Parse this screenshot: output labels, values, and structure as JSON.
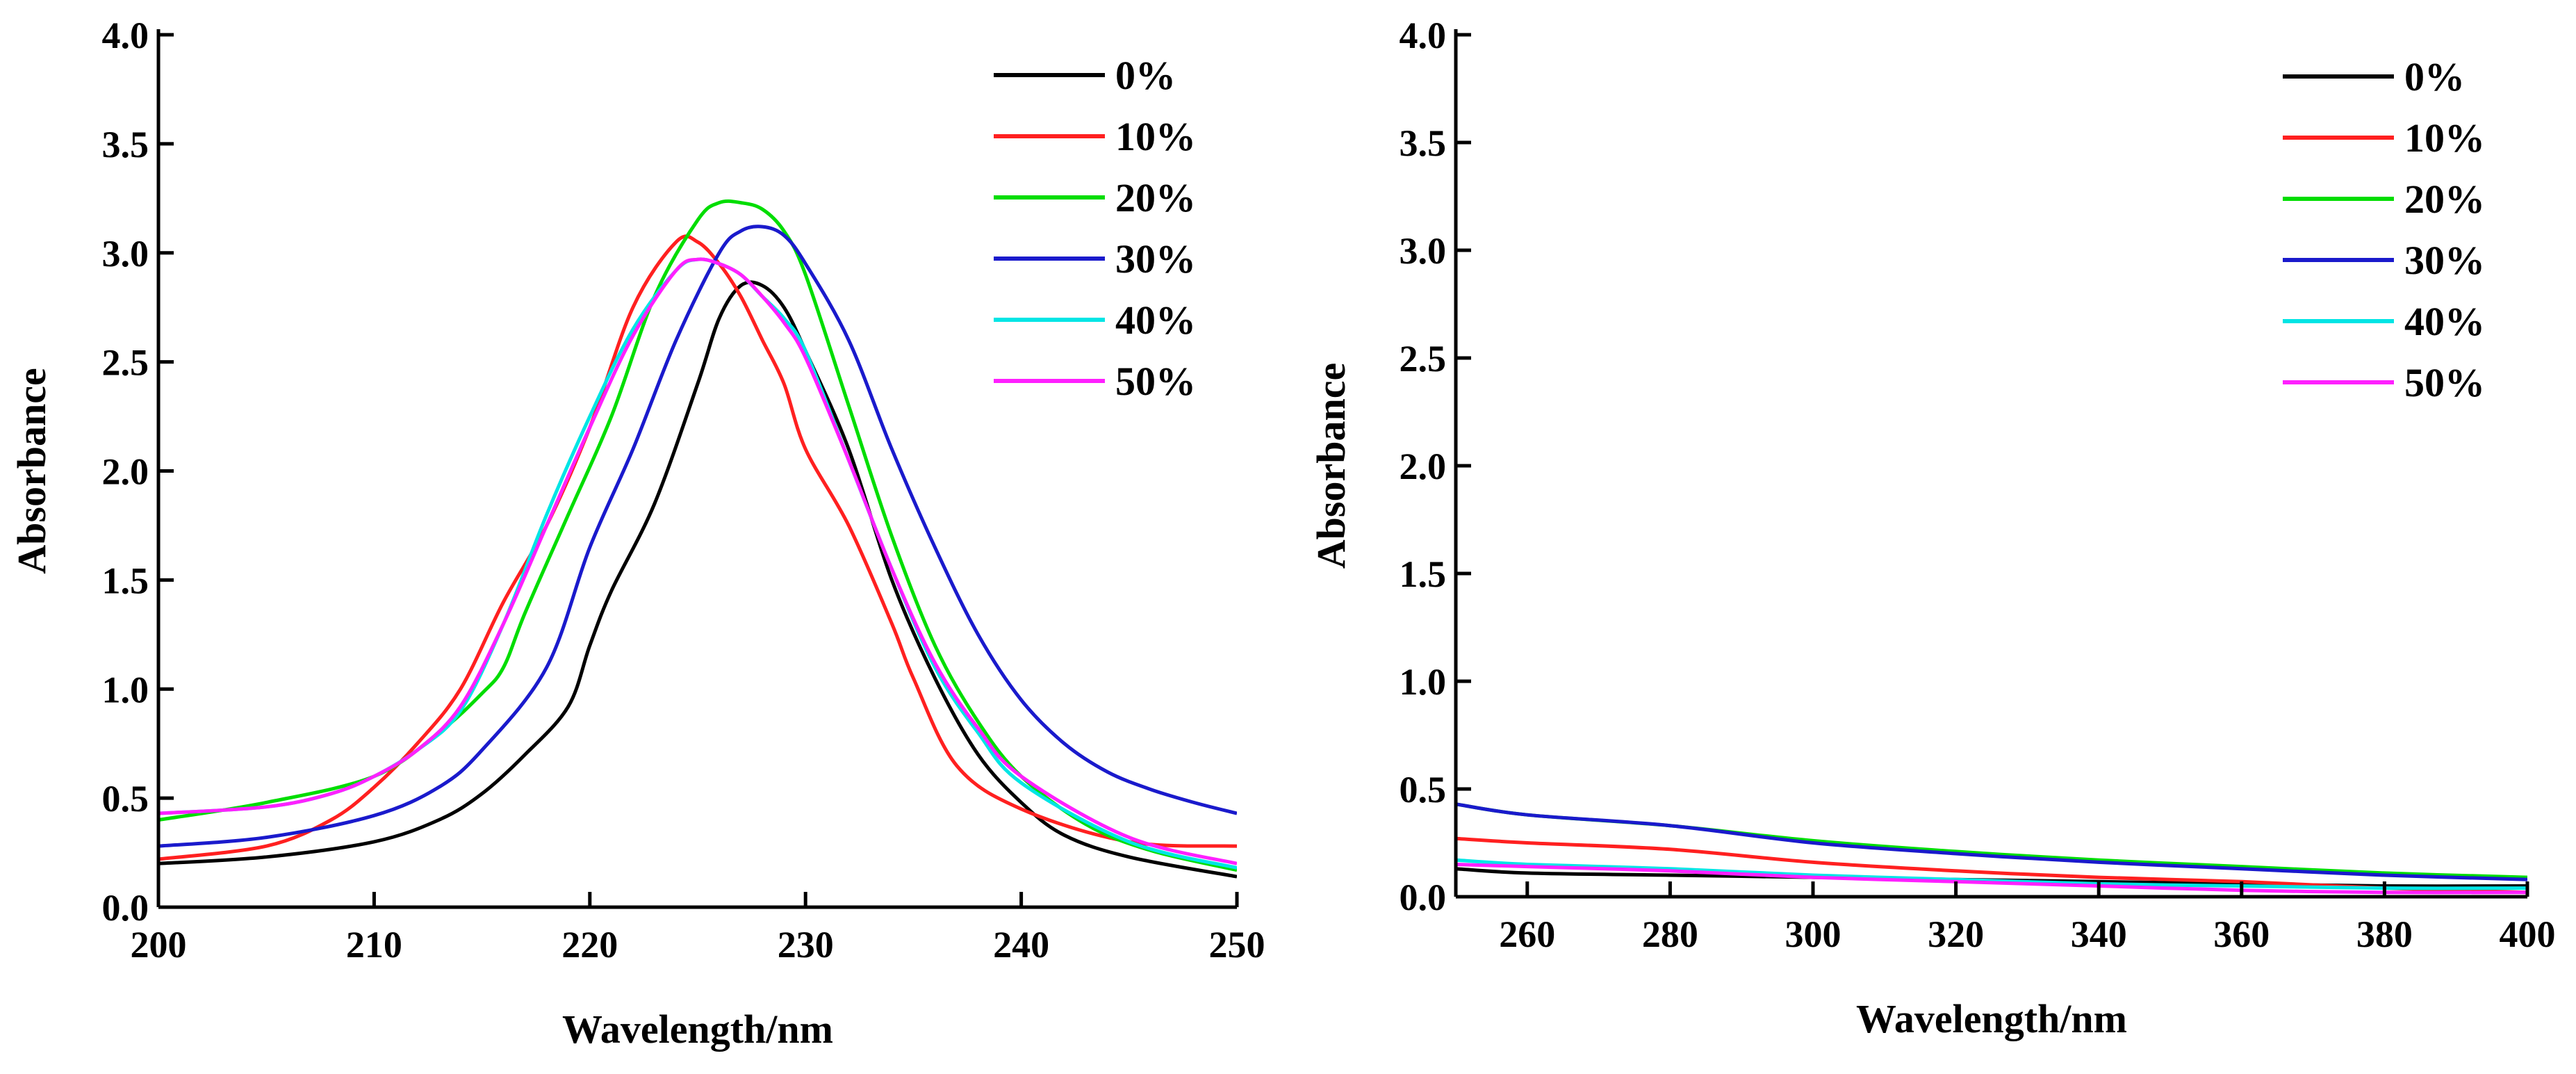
{
  "chart_data": [
    {
      "type": "line",
      "title": "",
      "xlabel": "Wavelength/nm",
      "ylabel": "Absorbance",
      "xlim": [
        200,
        250
      ],
      "ylim": [
        0,
        4.0
      ],
      "xticks": [
        "200",
        "210",
        "220",
        "230",
        "240",
        "250"
      ],
      "yticks": [
        "0.0",
        "0.5",
        "1.0",
        "1.5",
        "2.0",
        "2.5",
        "3.0",
        "3.5",
        "4.0"
      ],
      "legend_position": "top-right",
      "grid": false,
      "series": [
        {
          "name": "0%",
          "color": "#000000",
          "x": [
            200,
            205,
            210,
            213,
            215,
            217,
            219,
            220,
            221,
            223,
            225,
            226,
            227,
            228,
            229,
            230,
            232,
            234,
            236,
            238,
            240,
            242,
            245,
            250
          ],
          "y": [
            0.2,
            0.23,
            0.3,
            0.4,
            0.52,
            0.7,
            0.92,
            1.2,
            1.45,
            1.85,
            2.4,
            2.7,
            2.85,
            2.85,
            2.75,
            2.55,
            2.1,
            1.5,
            1.05,
            0.7,
            0.48,
            0.33,
            0.23,
            0.14
          ]
        },
        {
          "name": "10%",
          "color": "#ff2020",
          "x": [
            200,
            205,
            208,
            210,
            212,
            214,
            216,
            218,
            220,
            222,
            224,
            225,
            226,
            227,
            228,
            229,
            230,
            232,
            234,
            235,
            237,
            240,
            245,
            250
          ],
          "y": [
            0.22,
            0.28,
            0.4,
            0.55,
            0.75,
            1.0,
            1.4,
            1.75,
            2.2,
            2.75,
            3.05,
            3.05,
            2.95,
            2.8,
            2.6,
            2.4,
            2.1,
            1.75,
            1.3,
            1.05,
            0.65,
            0.45,
            0.3,
            0.28
          ]
        },
        {
          "name": "20%",
          "color": "#00dd00",
          "x": [
            200,
            205,
            210,
            213,
            215,
            216,
            217,
            219,
            221,
            223,
            225,
            226,
            227,
            228,
            229,
            230,
            232,
            234,
            236,
            238,
            240,
            243,
            246,
            250
          ],
          "y": [
            0.4,
            0.48,
            0.6,
            0.8,
            0.98,
            1.1,
            1.35,
            1.8,
            2.25,
            2.8,
            3.15,
            3.23,
            3.23,
            3.2,
            3.1,
            2.9,
            2.3,
            1.7,
            1.2,
            0.85,
            0.6,
            0.38,
            0.26,
            0.17
          ]
        },
        {
          "name": "30%",
          "color": "#1a1acc",
          "x": [
            200,
            205,
            210,
            213,
            215,
            218,
            220,
            222,
            224,
            226,
            227,
            228,
            229,
            230,
            232,
            234,
            236,
            238,
            240,
            242,
            244,
            246,
            248,
            250
          ],
          "y": [
            0.28,
            0.32,
            0.42,
            0.55,
            0.72,
            1.1,
            1.65,
            2.1,
            2.6,
            3.0,
            3.1,
            3.12,
            3.08,
            2.95,
            2.6,
            2.1,
            1.65,
            1.25,
            0.95,
            0.75,
            0.62,
            0.54,
            0.48,
            0.43
          ]
        },
        {
          "name": "40%",
          "color": "#00e5e5",
          "x": [
            200,
            205,
            208,
            210,
            212,
            214,
            216,
            218,
            220,
            222,
            224,
            225,
            226,
            227,
            228,
            229,
            230,
            232,
            234,
            236,
            238,
            240,
            245,
            250
          ],
          "y": [
            0.43,
            0.46,
            0.52,
            0.6,
            0.72,
            0.9,
            1.3,
            1.8,
            2.25,
            2.65,
            2.92,
            2.97,
            2.95,
            2.9,
            2.8,
            2.7,
            2.55,
            2.05,
            1.55,
            1.1,
            0.8,
            0.57,
            0.3,
            0.18
          ]
        },
        {
          "name": "50%",
          "color": "#ff20ff",
          "x": [
            200,
            205,
            208,
            210,
            212,
            214,
            216,
            218,
            220,
            222,
            224,
            225,
            226,
            227,
            228,
            229,
            230,
            232,
            234,
            236,
            238,
            240,
            245,
            250
          ],
          "y": [
            0.43,
            0.46,
            0.52,
            0.6,
            0.72,
            0.92,
            1.3,
            1.75,
            2.2,
            2.62,
            2.92,
            2.97,
            2.95,
            2.9,
            2.8,
            2.68,
            2.52,
            2.05,
            1.55,
            1.12,
            0.82,
            0.6,
            0.32,
            0.2
          ]
        }
      ]
    },
    {
      "type": "line",
      "title": "",
      "xlabel": "Wavelength/nm",
      "ylabel": "Absorbance",
      "xlim": [
        250,
        400
      ],
      "ylim": [
        0,
        4.0
      ],
      "xticks": [
        "260",
        "280",
        "300",
        "320",
        "340",
        "360",
        "380",
        "400"
      ],
      "yticks": [
        "0.0",
        "0.5",
        "1.0",
        "1.5",
        "2.0",
        "2.5",
        "3.0",
        "3.5",
        "4.0"
      ],
      "legend_position": "top-right",
      "grid": false,
      "series": [
        {
          "name": "0%",
          "color": "#000000",
          "x": [
            250,
            260,
            280,
            300,
            320,
            340,
            360,
            380,
            400
          ],
          "y": [
            0.13,
            0.11,
            0.1,
            0.09,
            0.08,
            0.07,
            0.06,
            0.05,
            0.05
          ]
        },
        {
          "name": "10%",
          "color": "#ff2020",
          "x": [
            250,
            260,
            280,
            300,
            320,
            340,
            360,
            380,
            400
          ],
          "y": [
            0.27,
            0.25,
            0.22,
            0.16,
            0.12,
            0.09,
            0.07,
            0.04,
            0.02
          ]
        },
        {
          "name": "20%",
          "color": "#00dd00",
          "x": [
            250,
            260,
            280,
            300,
            320,
            340,
            360,
            380,
            400
          ],
          "y": [
            0.43,
            0.38,
            0.33,
            0.26,
            0.21,
            0.17,
            0.14,
            0.11,
            0.09
          ]
        },
        {
          "name": "30%",
          "color": "#1a1acc",
          "x": [
            250,
            260,
            280,
            300,
            320,
            340,
            360,
            380,
            400
          ],
          "y": [
            0.43,
            0.38,
            0.33,
            0.25,
            0.2,
            0.16,
            0.13,
            0.1,
            0.08
          ]
        },
        {
          "name": "40%",
          "color": "#00e5e5",
          "x": [
            250,
            260,
            280,
            300,
            320,
            340,
            360,
            380,
            400
          ],
          "y": [
            0.17,
            0.15,
            0.13,
            0.1,
            0.08,
            0.06,
            0.05,
            0.04,
            0.04
          ]
        },
        {
          "name": "50%",
          "color": "#ff20ff",
          "x": [
            250,
            260,
            280,
            300,
            320,
            340,
            360,
            380,
            400
          ],
          "y": [
            0.15,
            0.14,
            0.12,
            0.09,
            0.07,
            0.05,
            0.03,
            0.02,
            0.02
          ]
        }
      ]
    }
  ]
}
